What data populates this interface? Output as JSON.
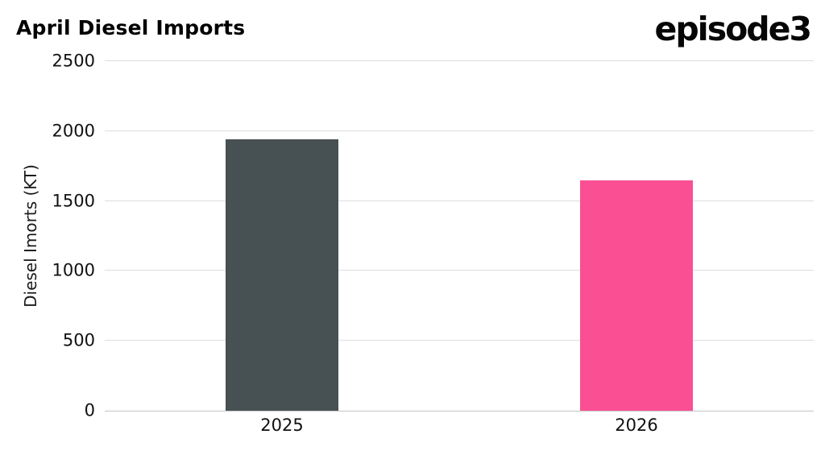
{
  "header": {
    "title": "April Diesel Imports",
    "logo": "episode3"
  },
  "chart_data": {
    "type": "bar",
    "title": "April Diesel Imports",
    "categories": [
      "2025",
      "2026"
    ],
    "values": [
      1940,
      1650
    ],
    "bar_colors": [
      "#475052",
      "#fb4f93"
    ],
    "xlabel": "",
    "ylabel": "Diesel Imorts (KT)",
    "ylim": [
      0,
      2500
    ],
    "yticks": [
      0,
      500,
      1000,
      1500,
      2000,
      2500
    ],
    "grid": true,
    "legend": false
  }
}
